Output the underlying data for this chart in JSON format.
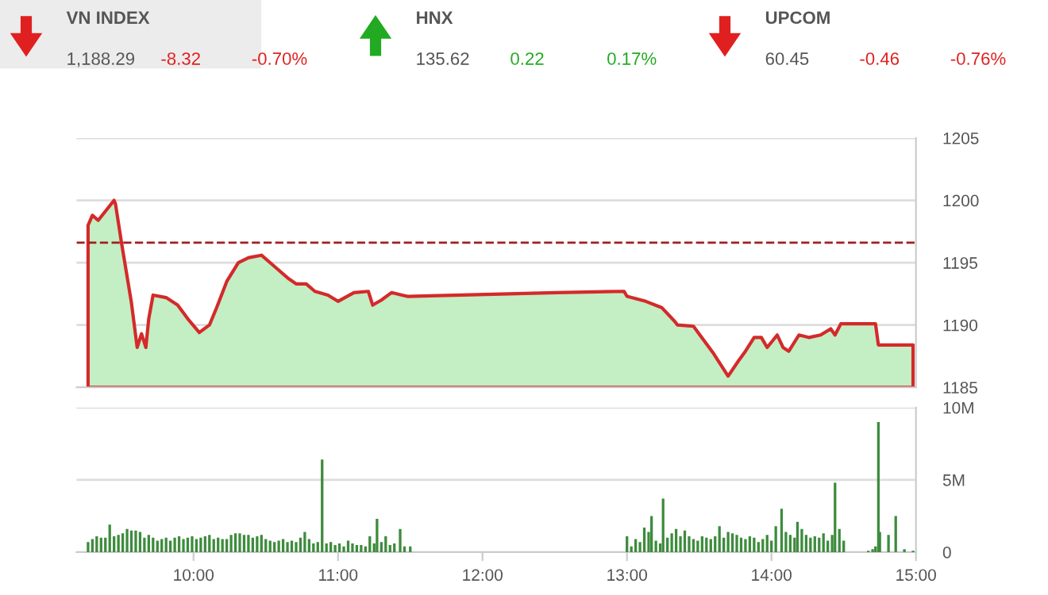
{
  "chart_data": [
    {
      "type": "other",
      "annotations": [
        "VN INDEX",
        "1,188.29",
        "-8.32",
        "-0.70%",
        "HNX",
        "135.62",
        "0.22",
        "0.17%",
        "UPCOM",
        "60.45",
        "-0.46",
        "-0.76%"
      ]
    },
    {
      "type": "area",
      "xlim": [
        9.19,
        15.0
      ],
      "ylim": [
        1185,
        1205
      ],
      "yticks": [
        1185,
        1190,
        1195,
        1200,
        1205
      ],
      "grid": "y",
      "tick_labels": "y",
      "ref_lines": [
        {
          "axis": "y",
          "value": 1196.61,
          "color": "#a02020",
          "line_style": "dashed"
        }
      ],
      "series": [
        {
          "color": "#d42a2a",
          "x": [
            9.27,
            9.3,
            9.34,
            9.45,
            9.46,
            9.5,
            9.57,
            9.61,
            9.64,
            9.67,
            9.69,
            9.72,
            9.81,
            9.89,
            9.96,
            10.04,
            10.11,
            10.16,
            10.23,
            10.31,
            10.38,
            10.47,
            10.55,
            10.66,
            10.71,
            10.78,
            10.84,
            10.93,
            11.0,
            11.11,
            11.21,
            11.24,
            11.3,
            11.37,
            11.48,
            12.51,
            12.98,
            13.0,
            13.13,
            13.24,
            13.33,
            13.35,
            13.46,
            13.53,
            13.6,
            13.7,
            13.77,
            13.82,
            13.88,
            13.93,
            13.97,
            14.04,
            14.08,
            14.12,
            14.19,
            14.26,
            14.34,
            14.41,
            14.44,
            14.48,
            14.72,
            14.74,
            14.98
          ],
          "values": [
            1198.0,
            1198.8,
            1198.4,
            1200.0,
            1199.7,
            1196.7,
            1191.8,
            1188.2,
            1189.3,
            1188.2,
            1190.5,
            1192.4,
            1192.2,
            1191.6,
            1190.5,
            1189.4,
            1190.0,
            1191.4,
            1193.5,
            1195.0,
            1195.4,
            1195.6,
            1194.8,
            1193.7,
            1193.3,
            1193.3,
            1192.7,
            1192.4,
            1191.9,
            1192.6,
            1192.7,
            1191.6,
            1192.0,
            1192.6,
            1192.3,
            1192.6,
            1192.7,
            1192.3,
            1191.9,
            1191.4,
            1190.3,
            1190.0,
            1189.9,
            1188.8,
            1187.7,
            1185.9,
            1187.1,
            1187.9,
            1189.0,
            1189.0,
            1188.2,
            1189.2,
            1188.2,
            1187.9,
            1189.2,
            1189.0,
            1189.2,
            1189.7,
            1189.2,
            1190.1,
            1190.1,
            1188.4,
            1188.4
          ]
        }
      ]
    },
    {
      "type": "bar",
      "xlim": [
        9.19,
        15.0
      ],
      "xticks": [
        {
          "value": 10,
          "label": "10:00"
        },
        {
          "value": 11,
          "label": "11:00"
        },
        {
          "value": 12,
          "label": "12:00"
        },
        {
          "value": 13,
          "label": "13:00"
        },
        {
          "value": 14,
          "label": "14:00"
        },
        {
          "value": 15,
          "label": "15:00"
        }
      ],
      "ylim": [
        0,
        10
      ],
      "yticks": [
        0,
        {
          "value": 5,
          "label": "5M"
        },
        {
          "value": 10,
          "label": "10M"
        }
      ],
      "grid": "y",
      "series": [
        {
          "color": "#3d8b3d",
          "x": [
            9.27,
            9.3,
            9.33,
            9.36,
            9.39,
            9.42,
            9.45,
            9.48,
            9.51,
            9.54,
            9.57,
            9.6,
            9.63,
            9.66,
            9.69,
            9.72,
            9.75,
            9.78,
            9.81,
            9.84,
            9.87,
            9.9,
            9.93,
            9.96,
            9.99,
            10.02,
            10.05,
            10.08,
            10.11,
            10.14,
            10.17,
            10.2,
            10.23,
            10.26,
            10.29,
            10.32,
            10.35,
            10.38,
            10.41,
            10.44,
            10.47,
            10.5,
            10.53,
            10.56,
            10.59,
            10.62,
            10.65,
            10.68,
            10.71,
            10.74,
            10.77,
            10.8,
            10.83,
            10.86,
            10.89,
            10.92,
            10.95,
            10.98,
            11.01,
            11.04,
            11.07,
            11.1,
            11.13,
            11.16,
            11.19,
            11.22,
            11.25,
            11.27,
            11.3,
            11.33,
            11.36,
            11.39,
            11.43,
            11.46,
            11.5,
            13.0,
            13.03,
            13.06,
            13.09,
            13.12,
            13.15,
            13.17,
            13.2,
            13.23,
            13.25,
            13.28,
            13.31,
            13.34,
            13.37,
            13.4,
            13.43,
            13.46,
            13.49,
            13.52,
            13.55,
            13.58,
            13.61,
            13.64,
            13.67,
            13.7,
            13.73,
            13.76,
            13.79,
            13.82,
            13.85,
            13.88,
            13.91,
            13.94,
            13.97,
            14.0,
            14.03,
            14.07,
            14.1,
            14.13,
            14.16,
            14.18,
            14.21,
            14.24,
            14.27,
            14.3,
            14.33,
            14.36,
            14.39,
            14.42,
            14.44,
            14.47,
            14.5,
            14.67,
            14.7,
            14.72,
            14.74,
            14.75,
            14.81,
            14.86,
            14.92,
            14.98
          ],
          "values": [
            0.7,
            0.9,
            1.1,
            1.0,
            1.0,
            1.9,
            1.1,
            1.2,
            1.3,
            1.6,
            1.5,
            1.5,
            1.4,
            1.0,
            1.2,
            1.0,
            0.8,
            0.9,
            1.0,
            0.8,
            1.0,
            1.1,
            0.9,
            1.0,
            1.1,
            0.9,
            1.0,
            1.1,
            1.2,
            0.9,
            1.0,
            0.9,
            0.9,
            1.2,
            1.3,
            1.3,
            1.2,
            1.2,
            1.0,
            1.1,
            1.2,
            0.9,
            0.8,
            0.7,
            0.8,
            0.9,
            0.7,
            0.8,
            0.7,
            1.0,
            1.4,
            0.9,
            0.6,
            0.7,
            6.4,
            0.6,
            0.7,
            0.5,
            0.6,
            0.4,
            0.8,
            0.6,
            0.5,
            0.5,
            0.4,
            1.1,
            0.6,
            2.3,
            0.7,
            1.1,
            0.5,
            0.6,
            1.6,
            0.4,
            0.4,
            1.1,
            0.4,
            0.9,
            0.7,
            1.7,
            1.4,
            2.5,
            0.8,
            0.6,
            3.7,
            1.0,
            1.3,
            1.6,
            1.1,
            1.5,
            1.1,
            0.9,
            0.8,
            1.1,
            1.0,
            0.9,
            1.1,
            1.8,
            1.0,
            1.4,
            1.3,
            1.2,
            1.0,
            0.9,
            1.1,
            1.0,
            0.7,
            0.9,
            1.2,
            0.8,
            1.8,
            3.0,
            1.4,
            1.2,
            1.0,
            2.1,
            1.6,
            1.2,
            1.0,
            1.1,
            1.0,
            1.3,
            0.8,
            1.2,
            4.8,
            1.6,
            0.8,
            0.1,
            0.2,
            0.4,
            9.0,
            1.4,
            1.2,
            2.5,
            0.2,
            0.1
          ]
        }
      ]
    }
  ]
}
